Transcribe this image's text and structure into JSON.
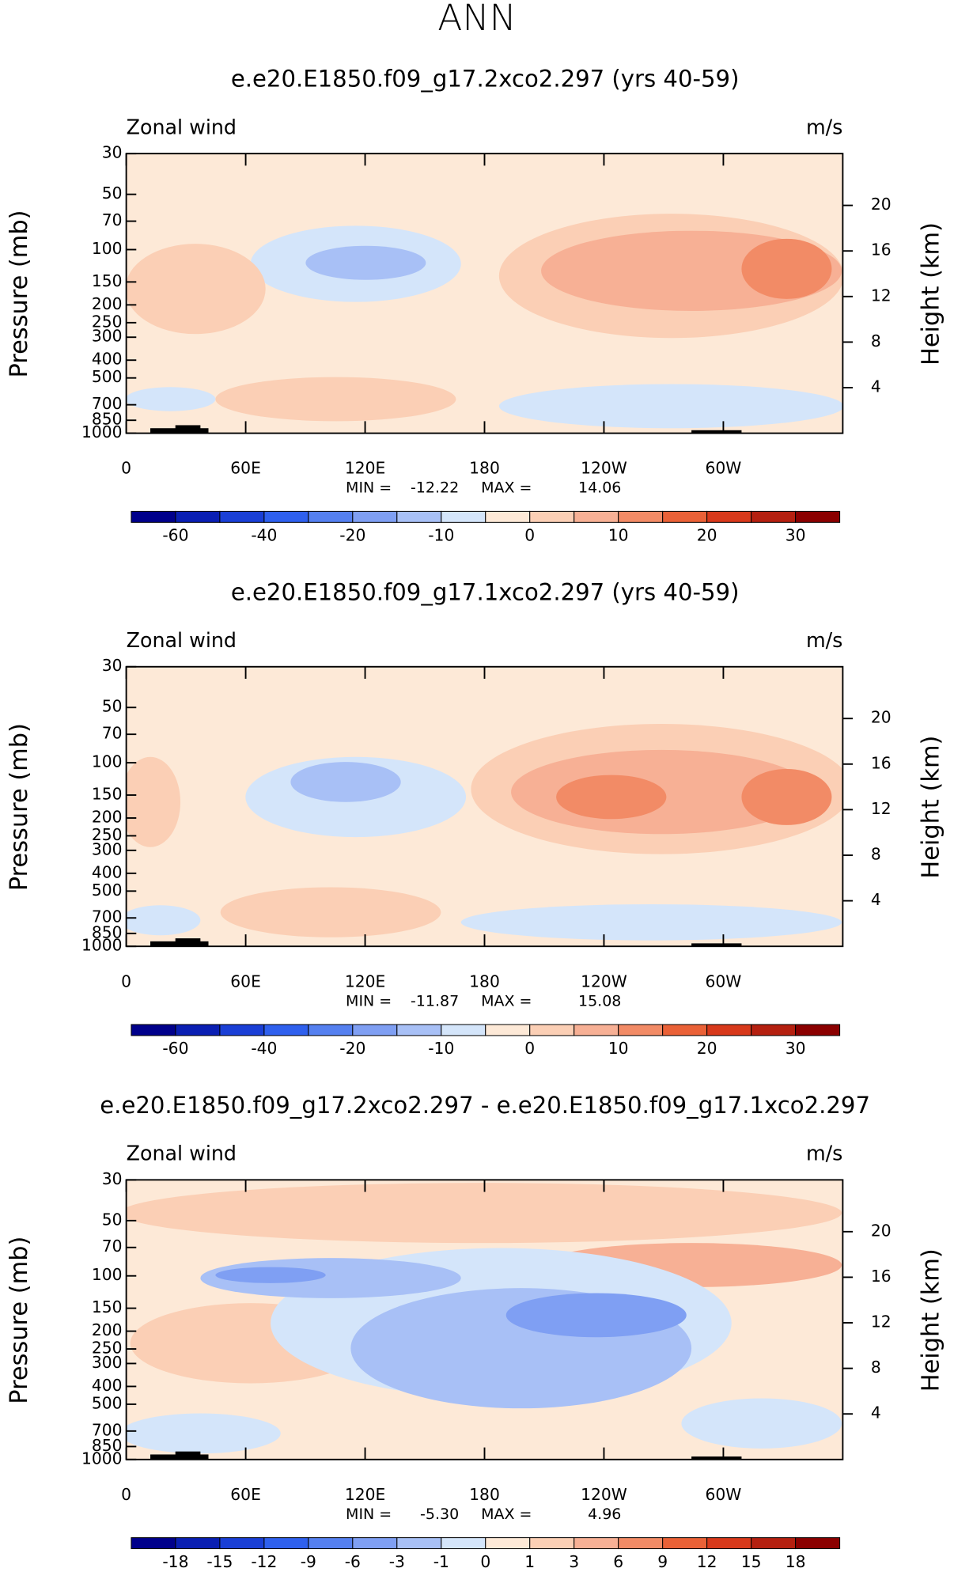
{
  "title": "ANN",
  "panels": [
    {
      "type": "contour",
      "title": "e.e20.E1850.f09_g17.2xco2.297 (yrs 40-59)",
      "left_label": "Zonal wind",
      "right_label": "m/s",
      "y_label": "Pressure (mb)",
      "y2_label": "Height (km)",
      "ylim": [
        1000,
        30
      ],
      "yticks": [
        30,
        50,
        70,
        100,
        150,
        200,
        250,
        300,
        400,
        500,
        700,
        850,
        1000
      ],
      "y2ticks": [
        20,
        16,
        12,
        8,
        4
      ],
      "xlim": [
        0,
        360
      ],
      "xticks": [
        0,
        {
          "value": 60,
          "label": "60E"
        },
        {
          "value": 120,
          "label": "120E"
        },
        180,
        {
          "value": 240,
          "label": "120W"
        },
        {
          "value": 300,
          "label": "60W"
        }
      ],
      "min_label": "MIN =",
      "min": -12.22,
      "max_label": "MAX =",
      "max": 14.06,
      "colorbar": [
        -60,
        -40,
        -20,
        -10,
        0,
        10,
        20,
        30
      ]
    },
    {
      "type": "contour",
      "title": "e.e20.E1850.f09_g17.1xco2.297 (yrs 40-59)",
      "left_label": "Zonal wind",
      "right_label": "m/s",
      "y_label": "Pressure (mb)",
      "y2_label": "Height (km)",
      "ylim": [
        1000,
        30
      ],
      "yticks": [
        30,
        50,
        70,
        100,
        150,
        200,
        250,
        300,
        400,
        500,
        700,
        850,
        1000
      ],
      "y2ticks": [
        20,
        16,
        12,
        8,
        4
      ],
      "xlim": [
        0,
        360
      ],
      "xticks": [
        0,
        {
          "value": 60,
          "label": "60E"
        },
        {
          "value": 120,
          "label": "120E"
        },
        180,
        {
          "value": 240,
          "label": "120W"
        },
        {
          "value": 300,
          "label": "60W"
        }
      ],
      "min_label": "MIN =",
      "min": -11.87,
      "max_label": "MAX =",
      "max": 15.08,
      "colorbar": [
        -60,
        -40,
        -20,
        -10,
        0,
        10,
        20,
        30
      ]
    },
    {
      "type": "contour",
      "title": "e.e20.E1850.f09_g17.2xco2.297 - e.e20.E1850.f09_g17.1xco2.297",
      "left_label": "Zonal wind",
      "right_label": "m/s",
      "y_label": "Pressure (mb)",
      "y2_label": "Height (km)",
      "ylim": [
        1000,
        30
      ],
      "yticks": [
        30,
        50,
        70,
        100,
        150,
        200,
        250,
        300,
        400,
        500,
        700,
        850,
        1000
      ],
      "y2ticks": [
        20,
        16,
        12,
        8,
        4
      ],
      "xlim": [
        0,
        360
      ],
      "xticks": [
        0,
        {
          "value": 60,
          "label": "60E"
        },
        {
          "value": 120,
          "label": "120E"
        },
        180,
        {
          "value": 240,
          "label": "120W"
        },
        {
          "value": 300,
          "label": "60W"
        }
      ],
      "min_label": "MIN =",
      "min": {
        "value": -5.3,
        "label": "-5.30"
      },
      "max_label": "MAX =",
      "max": 4.96,
      "colorbar": [
        -18,
        -15,
        -12,
        -9,
        -6,
        -3,
        -1,
        0,
        1,
        3,
        6,
        9,
        12,
        15,
        18
      ]
    }
  ]
}
